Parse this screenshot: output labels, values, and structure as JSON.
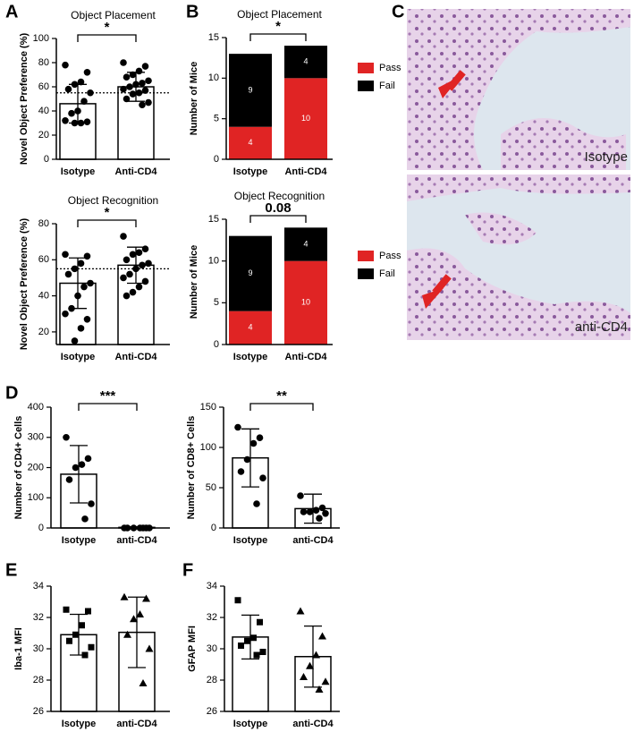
{
  "panel_labels": [
    "A",
    "B",
    "C",
    "D",
    "E",
    "F"
  ],
  "images": [
    {
      "label": "Isotype"
    },
    {
      "label": "anti-CD4"
    }
  ],
  "chart_data": [
    {
      "type": "bar",
      "title": "Object Placement",
      "ylabel": "Novel Object Preference (%)",
      "categories": [
        "Isotype",
        "Anti-CD4"
      ],
      "values": [
        46,
        60
      ],
      "errors": [
        16,
        12
      ],
      "points": [
        [
          78,
          72,
          64,
          62,
          58,
          55,
          48,
          40,
          38,
          32,
          31,
          30,
          30
        ],
        [
          80,
          77,
          73,
          70,
          68,
          65,
          63,
          62,
          60,
          58,
          57,
          55,
          54,
          50,
          47,
          45
        ]
      ],
      "markers": [
        "circle",
        "circle"
      ],
      "reference_line": 55,
      "significance": "*",
      "ylim": [
        0,
        100
      ],
      "yticks": [
        0,
        20,
        40,
        60,
        80,
        100
      ]
    },
    {
      "type": "bar",
      "title": "Object Recognition",
      "ylabel": "Novel Object Preference (%)",
      "categories": [
        "Isotype",
        "Anti-CD4"
      ],
      "values": [
        47,
        57
      ],
      "errors": [
        14,
        10
      ],
      "points": [
        [
          63,
          62,
          58,
          55,
          52,
          47,
          45,
          40,
          33,
          30,
          27,
          22,
          15
        ],
        [
          73,
          66,
          64,
          63,
          60,
          58,
          57,
          55,
          52,
          50,
          48,
          45,
          42,
          40
        ]
      ],
      "markers": [
        "circle",
        "circle"
      ],
      "reference_line": 55,
      "significance": "*",
      "ylim": [
        13,
        80
      ],
      "yticks": [
        20,
        40,
        60,
        80
      ]
    },
    {
      "type": "stacked",
      "title": "Object Placement",
      "ylabel": "Number of Mice",
      "categories": [
        "Isotype",
        "Anti-CD4"
      ],
      "series": [
        {
          "name": "Pass",
          "color": "#e02424",
          "values": [
            4,
            10
          ]
        },
        {
          "name": "Fail",
          "color": "#000000",
          "values": [
            9,
            4
          ]
        }
      ],
      "significance": "*",
      "ylim": [
        0,
        15
      ],
      "yticks": [
        0,
        5,
        10,
        15
      ]
    },
    {
      "type": "stacked",
      "title": "Object Recognition",
      "ylabel": "Number of Mice",
      "categories": [
        "Isotype",
        "Anti-CD4"
      ],
      "series": [
        {
          "name": "Pass",
          "color": "#e02424",
          "values": [
            4,
            10
          ]
        },
        {
          "name": "Fail",
          "color": "#000000",
          "values": [
            9,
            4
          ]
        }
      ],
      "significance": "0.08",
      "ylim": [
        0,
        15
      ],
      "yticks": [
        0,
        5,
        10,
        15
      ]
    },
    {
      "type": "bar",
      "ylabel": "Number of CD4+ Cells",
      "categories": [
        "Isotype",
        "anti-CD4"
      ],
      "values": [
        178,
        2
      ],
      "errors": [
        95,
        2
      ],
      "points": [
        [
          300,
          230,
          210,
          200,
          160,
          80,
          30
        ],
        [
          0,
          0,
          0,
          0,
          0,
          0,
          0
        ]
      ],
      "markers": [
        "circle",
        "circle"
      ],
      "significance": "***",
      "ylim": [
        0,
        400
      ],
      "yticks": [
        0,
        100,
        200,
        300,
        400
      ]
    },
    {
      "type": "bar",
      "ylabel": "Number of CD8+ Cells",
      "categories": [
        "Isotype",
        "anti-CD4"
      ],
      "values": [
        87,
        24
      ],
      "errors": [
        36,
        18
      ],
      "points": [
        [
          125,
          112,
          105,
          85,
          70,
          62,
          30
        ],
        [
          40,
          25,
          22,
          20,
          20,
          18,
          12
        ]
      ],
      "markers": [
        "circle",
        "circle"
      ],
      "significance": "**",
      "ylim": [
        0,
        150
      ],
      "yticks": [
        0,
        50,
        100,
        150
      ]
    },
    {
      "type": "bar",
      "ylabel": "Iba-1 MFI",
      "categories": [
        "Isotype",
        "anti-CD4"
      ],
      "values": [
        30.9,
        31.05
      ],
      "errors": [
        1.3,
        2.25
      ],
      "points": [
        [
          32.5,
          32.4,
          31.5,
          30.9,
          30.5,
          30.1,
          29.6
        ],
        [
          33.3,
          33.2,
          32.2,
          31.9,
          30.9,
          30.0,
          27.8
        ]
      ],
      "markers": [
        "square",
        "triangle"
      ],
      "ylim": [
        26,
        34
      ],
      "yticks": [
        26,
        28,
        30,
        32,
        34
      ]
    },
    {
      "type": "bar",
      "ylabel": "GFAP MFI",
      "categories": [
        "Isotype",
        "anti-CD4"
      ],
      "values": [
        30.75,
        29.5
      ],
      "errors": [
        1.4,
        1.95
      ],
      "points": [
        [
          33.1,
          31.7,
          30.7,
          30.5,
          30.2,
          29.8,
          29.6
        ],
        [
          32.4,
          30.8,
          29.6,
          28.9,
          28.2,
          27.9,
          27.4
        ]
      ],
      "markers": [
        "square",
        "triangle"
      ],
      "ylim": [
        26,
        34
      ],
      "yticks": [
        26,
        28,
        30,
        32,
        34
      ]
    }
  ]
}
